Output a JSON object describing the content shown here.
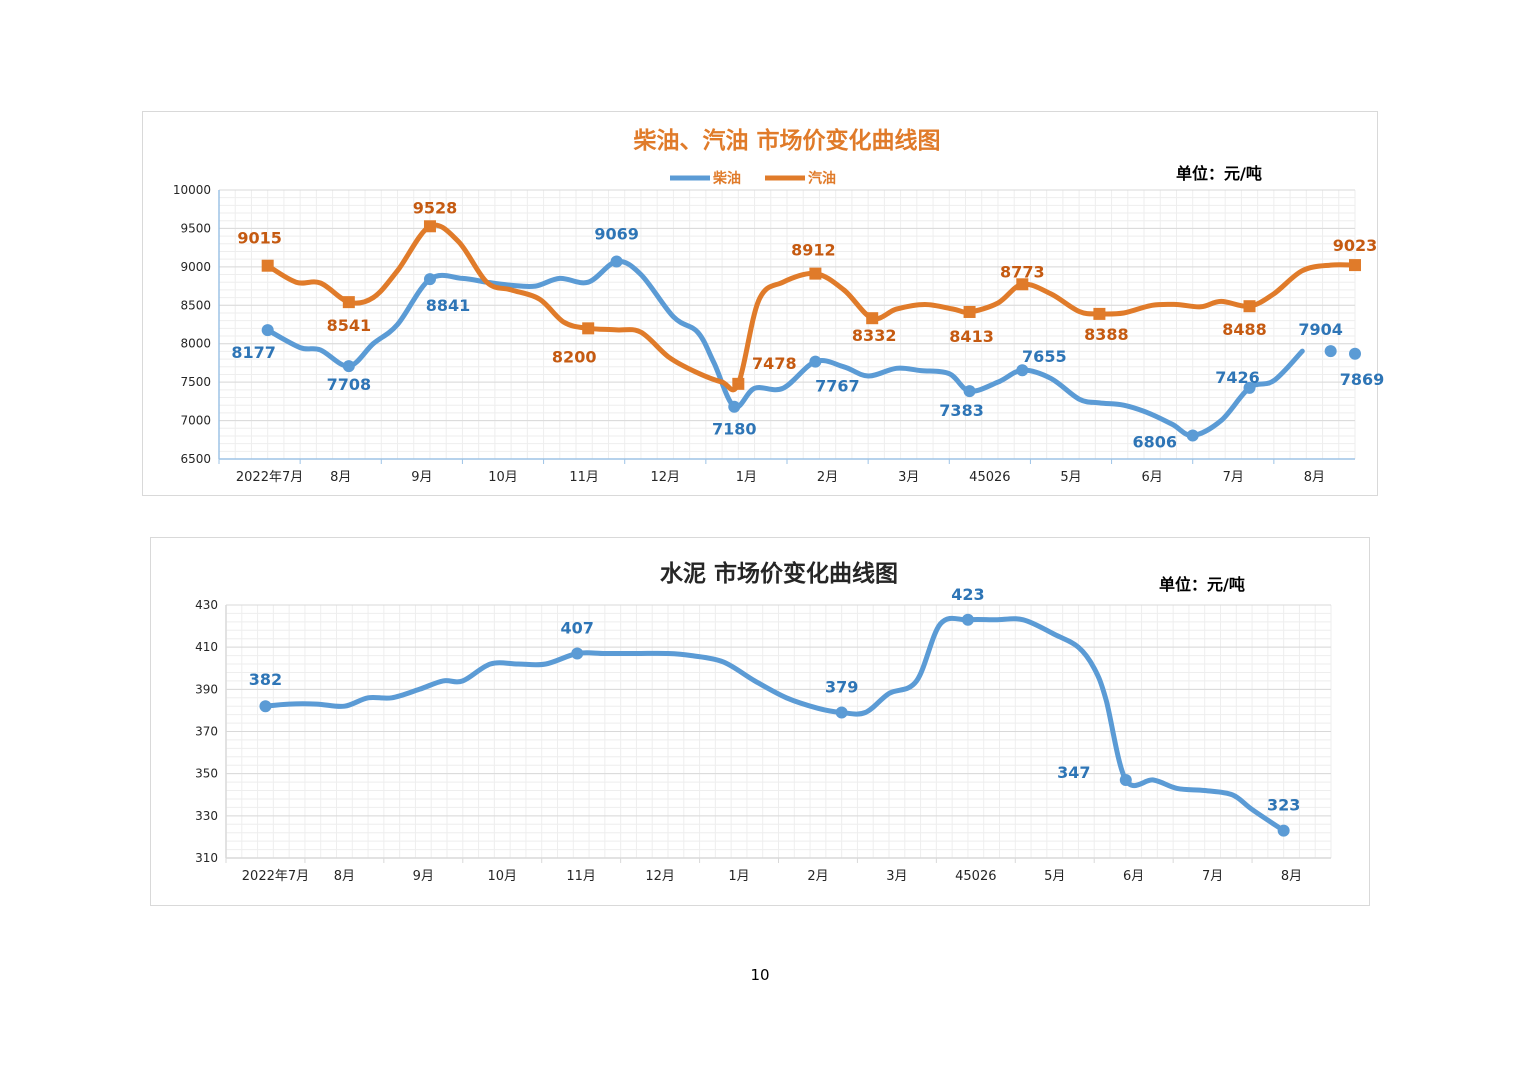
{
  "colors": {
    "diesel": "#5b9bd5",
    "diesel_label": "#2e75b6",
    "gasoline": "#e07b2a",
    "gasoline_label": "#c55a11",
    "grid_major": "#d9d9d9",
    "grid_minor": "#eeeeee",
    "axis": "#9dc3e6",
    "title_dark": "#262626"
  },
  "page_number": "10",
  "chart_data": [
    {
      "type": "line",
      "title": "柴油、汽油 市场价变化曲线图",
      "unit": "单位：元/吨",
      "categories": [
        "2022年7月",
        "8月",
        "9月",
        "10月",
        "11月",
        "12月",
        "1月",
        "2月",
        "3月",
        "45026",
        "5月",
        "6月",
        "7月",
        "8月"
      ],
      "ylim": [
        6500,
        10000
      ],
      "yticks": [
        6500,
        7000,
        7500,
        8000,
        8500,
        9000,
        9500,
        10000
      ],
      "legend": "top-center",
      "grid": true,
      "series": [
        {
          "name": "柴油",
          "x": [
            0.6,
            1.0,
            1.25,
            1.6,
            1.9,
            2.2,
            2.6,
            3.0,
            3.3,
            3.6,
            3.9,
            4.2,
            4.55,
            4.9,
            5.2,
            5.6,
            5.9,
            6.1,
            6.35,
            6.6,
            6.95,
            7.35,
            7.7,
            8.0,
            8.35,
            8.65,
            9.0,
            9.25,
            9.6,
            9.9,
            10.25,
            10.6,
            10.85,
            11.15,
            11.45,
            11.75,
            12.0,
            12.35,
            12.7,
            13.0,
            13.35
          ],
          "values": [
            8177,
            7950,
            7920,
            7708,
            8000,
            8250,
            8841,
            8850,
            8800,
            8760,
            8750,
            8850,
            8800,
            9069,
            8900,
            8350,
            8150,
            7750,
            7180,
            7420,
            7420,
            7767,
            7700,
            7580,
            7680,
            7650,
            7610,
            7383,
            7500,
            7655,
            7550,
            7280,
            7230,
            7200,
            7100,
            6950,
            6806,
            7000,
            7426,
            7520,
            7904
          ],
          "point_labels": [
            {
              "x": 0.6,
              "y": 8177,
              "label": "8177"
            },
            {
              "x": 1.6,
              "y": 7708,
              "label": "7708"
            },
            {
              "x": 2.6,
              "y": 8841,
              "label": "8841"
            },
            {
              "x": 4.9,
              "y": 9069,
              "label": "9069"
            },
            {
              "x": 6.35,
              "y": 7180,
              "label": "7180"
            },
            {
              "x": 7.35,
              "y": 7767,
              "label": "7767"
            },
            {
              "x": 9.25,
              "y": 7383,
              "label": "7383"
            },
            {
              "x": 9.9,
              "y": 7655,
              "label": "7655"
            },
            {
              "x": 12.0,
              "y": 6806,
              "label": "6806"
            },
            {
              "x": 12.7,
              "y": 7426,
              "label": "7426"
            },
            {
              "x": 13.7,
              "y": 7904,
              "label": "7904"
            },
            {
              "x": 14.0,
              "y": 7869,
              "label": "7869"
            }
          ]
        },
        {
          "name": "汽油",
          "x": [
            0.6,
            0.95,
            1.25,
            1.6,
            1.9,
            2.2,
            2.6,
            2.95,
            3.3,
            3.6,
            3.95,
            4.25,
            4.55,
            4.9,
            5.2,
            5.55,
            5.9,
            6.2,
            6.4,
            6.65,
            6.95,
            7.35,
            7.7,
            8.05,
            8.35,
            8.7,
            9.05,
            9.25,
            9.6,
            9.9,
            10.25,
            10.6,
            10.85,
            11.15,
            11.5,
            11.8,
            12.1,
            12.35,
            12.7,
            13.0,
            13.35,
            13.7,
            14.0
          ],
          "values": [
            9015,
            8800,
            8790,
            8541,
            8600,
            8950,
            9528,
            9330,
            8800,
            8700,
            8580,
            8280,
            8200,
            8180,
            8150,
            7820,
            7620,
            7500,
            7478,
            8560,
            8800,
            8912,
            8700,
            8332,
            8450,
            8510,
            8450,
            8413,
            8530,
            8773,
            8650,
            8420,
            8388,
            8400,
            8500,
            8510,
            8480,
            8550,
            8488,
            8650,
            8950,
            9023,
            9023
          ],
          "point_labels": [
            {
              "x": 0.6,
              "y": 9015,
              "label": "9015"
            },
            {
              "x": 1.6,
              "y": 8541,
              "label": "8541"
            },
            {
              "x": 2.6,
              "y": 9528,
              "label": "9528"
            },
            {
              "x": 4.55,
              "y": 8200,
              "label": "8200"
            },
            {
              "x": 6.4,
              "y": 7478,
              "label": "7478"
            },
            {
              "x": 7.35,
              "y": 8912,
              "label": "8912"
            },
            {
              "x": 8.05,
              "y": 8332,
              "label": "8332"
            },
            {
              "x": 9.25,
              "y": 8413,
              "label": "8413"
            },
            {
              "x": 9.9,
              "y": 8773,
              "label": "8773"
            },
            {
              "x": 10.85,
              "y": 8388,
              "label": "8388"
            },
            {
              "x": 12.7,
              "y": 8488,
              "label": "8488"
            },
            {
              "x": 14.0,
              "y": 9023,
              "label": "9023"
            }
          ]
        }
      ]
    },
    {
      "type": "line",
      "title": "水泥 市场价变化曲线图",
      "unit": "单位：元/吨",
      "categories": [
        "2022年7月",
        "8月",
        "9月",
        "10月",
        "11月",
        "12月",
        "1月",
        "2月",
        "3月",
        "45026",
        "5月",
        "6月",
        "7月",
        "8月"
      ],
      "ylim": [
        310,
        430
      ],
      "yticks": [
        310,
        330,
        350,
        370,
        390,
        410,
        430
      ],
      "grid": true,
      "series": [
        {
          "name": "水泥",
          "x": [
            0.5,
            0.8,
            1.15,
            1.5,
            1.8,
            2.1,
            2.45,
            2.75,
            3.0,
            3.35,
            3.7,
            4.05,
            4.45,
            4.8,
            5.2,
            5.6,
            5.9,
            6.3,
            6.7,
            7.1,
            7.5,
            7.8,
            8.1,
            8.4,
            8.75,
            9.05,
            9.4,
            9.75,
            10.1,
            10.5,
            10.8,
            11.0,
            11.15,
            11.4,
            11.75,
            12.05,
            12.4,
            12.75,
            13.0,
            13.4
          ],
          "values": [
            382,
            383,
            383,
            382,
            386,
            386,
            390,
            394,
            394,
            402,
            402,
            402,
            407,
            407,
            407,
            407,
            406,
            403,
            394,
            386,
            381,
            379,
            379,
            388,
            394,
            421,
            423,
            423,
            423,
            416,
            410,
            400,
            385,
            347,
            347,
            343,
            342,
            340,
            333,
            323
          ],
          "point_labels": [
            {
              "x": 0.5,
              "y": 382,
              "label": "382"
            },
            {
              "x": 4.45,
              "y": 407,
              "label": "407"
            },
            {
              "x": 7.8,
              "y": 379,
              "label": "379"
            },
            {
              "x": 9.4,
              "y": 423,
              "label": "423"
            },
            {
              "x": 11.4,
              "y": 347,
              "label": "347"
            },
            {
              "x": 13.4,
              "y": 323,
              "label": "323"
            }
          ]
        }
      ]
    }
  ]
}
